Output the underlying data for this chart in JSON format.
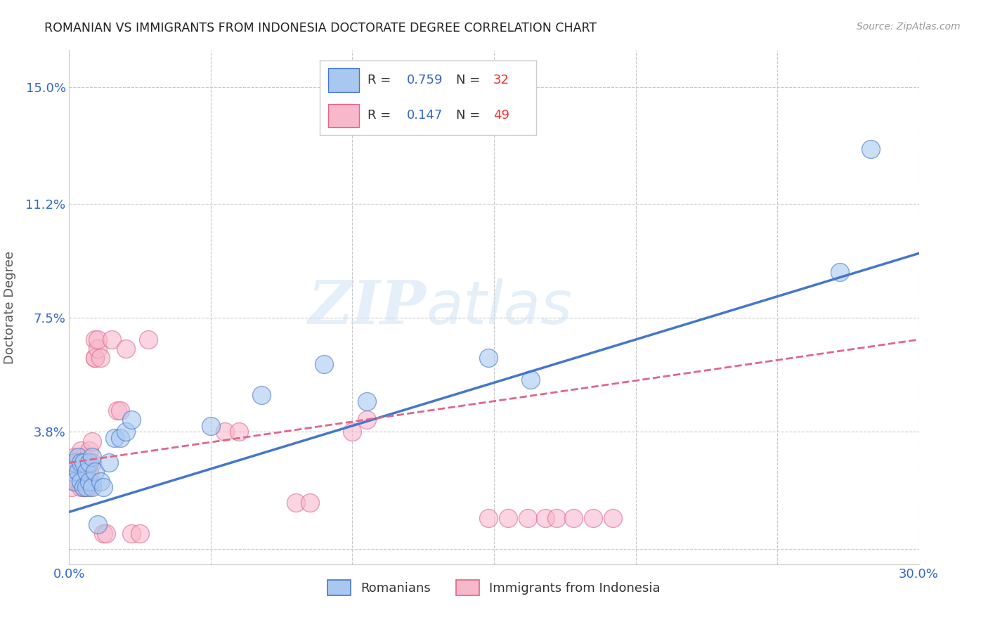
{
  "title": "ROMANIAN VS IMMIGRANTS FROM INDONESIA DOCTORATE DEGREE CORRELATION CHART",
  "source": "Source: ZipAtlas.com",
  "ylabel": "Doctorate Degree",
  "xlim": [
    0.0,
    0.3
  ],
  "ylim": [
    -0.005,
    0.162
  ],
  "yticks": [
    0.0,
    0.038,
    0.075,
    0.112,
    0.15
  ],
  "ytick_labels": [
    "",
    "3.8%",
    "7.5%",
    "11.2%",
    "15.0%"
  ],
  "xticks": [
    0.0,
    0.05,
    0.1,
    0.15,
    0.2,
    0.25,
    0.3
  ],
  "xtick_labels": [
    "0.0%",
    "",
    "",
    "",
    "",
    "",
    "30.0%"
  ],
  "grid_color": "#c8c8c8",
  "watermark_zip": "ZIP",
  "watermark_atlas": "atlas",
  "blue_color": "#a8c8f0",
  "pink_color": "#f8b8cc",
  "line_blue": "#4477cc",
  "line_pink": "#e06688",
  "r_blue": "0.759",
  "n_blue": "32",
  "r_pink": "0.147",
  "n_pink": "49",
  "legend_label_blue": "Romanians",
  "legend_label_pink": "Immigrants from Indonesia",
  "blue_x": [
    0.001,
    0.002,
    0.002,
    0.003,
    0.003,
    0.004,
    0.004,
    0.005,
    0.005,
    0.006,
    0.006,
    0.007,
    0.007,
    0.008,
    0.008,
    0.009,
    0.01,
    0.011,
    0.012,
    0.014,
    0.016,
    0.018,
    0.02,
    0.022,
    0.05,
    0.068,
    0.09,
    0.105,
    0.148,
    0.163,
    0.272,
    0.283
  ],
  "blue_y": [
    0.025,
    0.022,
    0.028,
    0.025,
    0.03,
    0.022,
    0.028,
    0.02,
    0.028,
    0.02,
    0.025,
    0.022,
    0.028,
    0.02,
    0.03,
    0.025,
    0.008,
    0.022,
    0.02,
    0.028,
    0.036,
    0.036,
    0.038,
    0.042,
    0.04,
    0.05,
    0.06,
    0.048,
    0.062,
    0.055,
    0.09,
    0.13
  ],
  "pink_x": [
    0.001,
    0.001,
    0.002,
    0.002,
    0.003,
    0.003,
    0.004,
    0.004,
    0.004,
    0.005,
    0.005,
    0.005,
    0.006,
    0.006,
    0.007,
    0.007,
    0.007,
    0.008,
    0.008,
    0.008,
    0.009,
    0.009,
    0.009,
    0.01,
    0.01,
    0.011,
    0.012,
    0.013,
    0.015,
    0.017,
    0.018,
    0.02,
    0.022,
    0.025,
    0.028,
    0.055,
    0.06,
    0.08,
    0.085,
    0.1,
    0.105,
    0.148,
    0.155,
    0.162,
    0.168,
    0.172,
    0.178,
    0.185,
    0.192
  ],
  "pink_y": [
    0.02,
    0.028,
    0.022,
    0.03,
    0.022,
    0.028,
    0.02,
    0.025,
    0.032,
    0.02,
    0.025,
    0.03,
    0.022,
    0.028,
    0.02,
    0.025,
    0.032,
    0.022,
    0.028,
    0.035,
    0.062,
    0.068,
    0.062,
    0.065,
    0.068,
    0.062,
    0.005,
    0.005,
    0.068,
    0.045,
    0.045,
    0.065,
    0.005,
    0.005,
    0.068,
    0.038,
    0.038,
    0.015,
    0.015,
    0.038,
    0.042,
    0.01,
    0.01,
    0.01,
    0.01,
    0.01,
    0.01,
    0.01,
    0.01
  ],
  "blue_line_x": [
    0.0,
    0.3
  ],
  "blue_line_y": [
    0.012,
    0.096
  ],
  "pink_line_x": [
    0.0,
    0.3
  ],
  "pink_line_y": [
    0.028,
    0.068
  ]
}
